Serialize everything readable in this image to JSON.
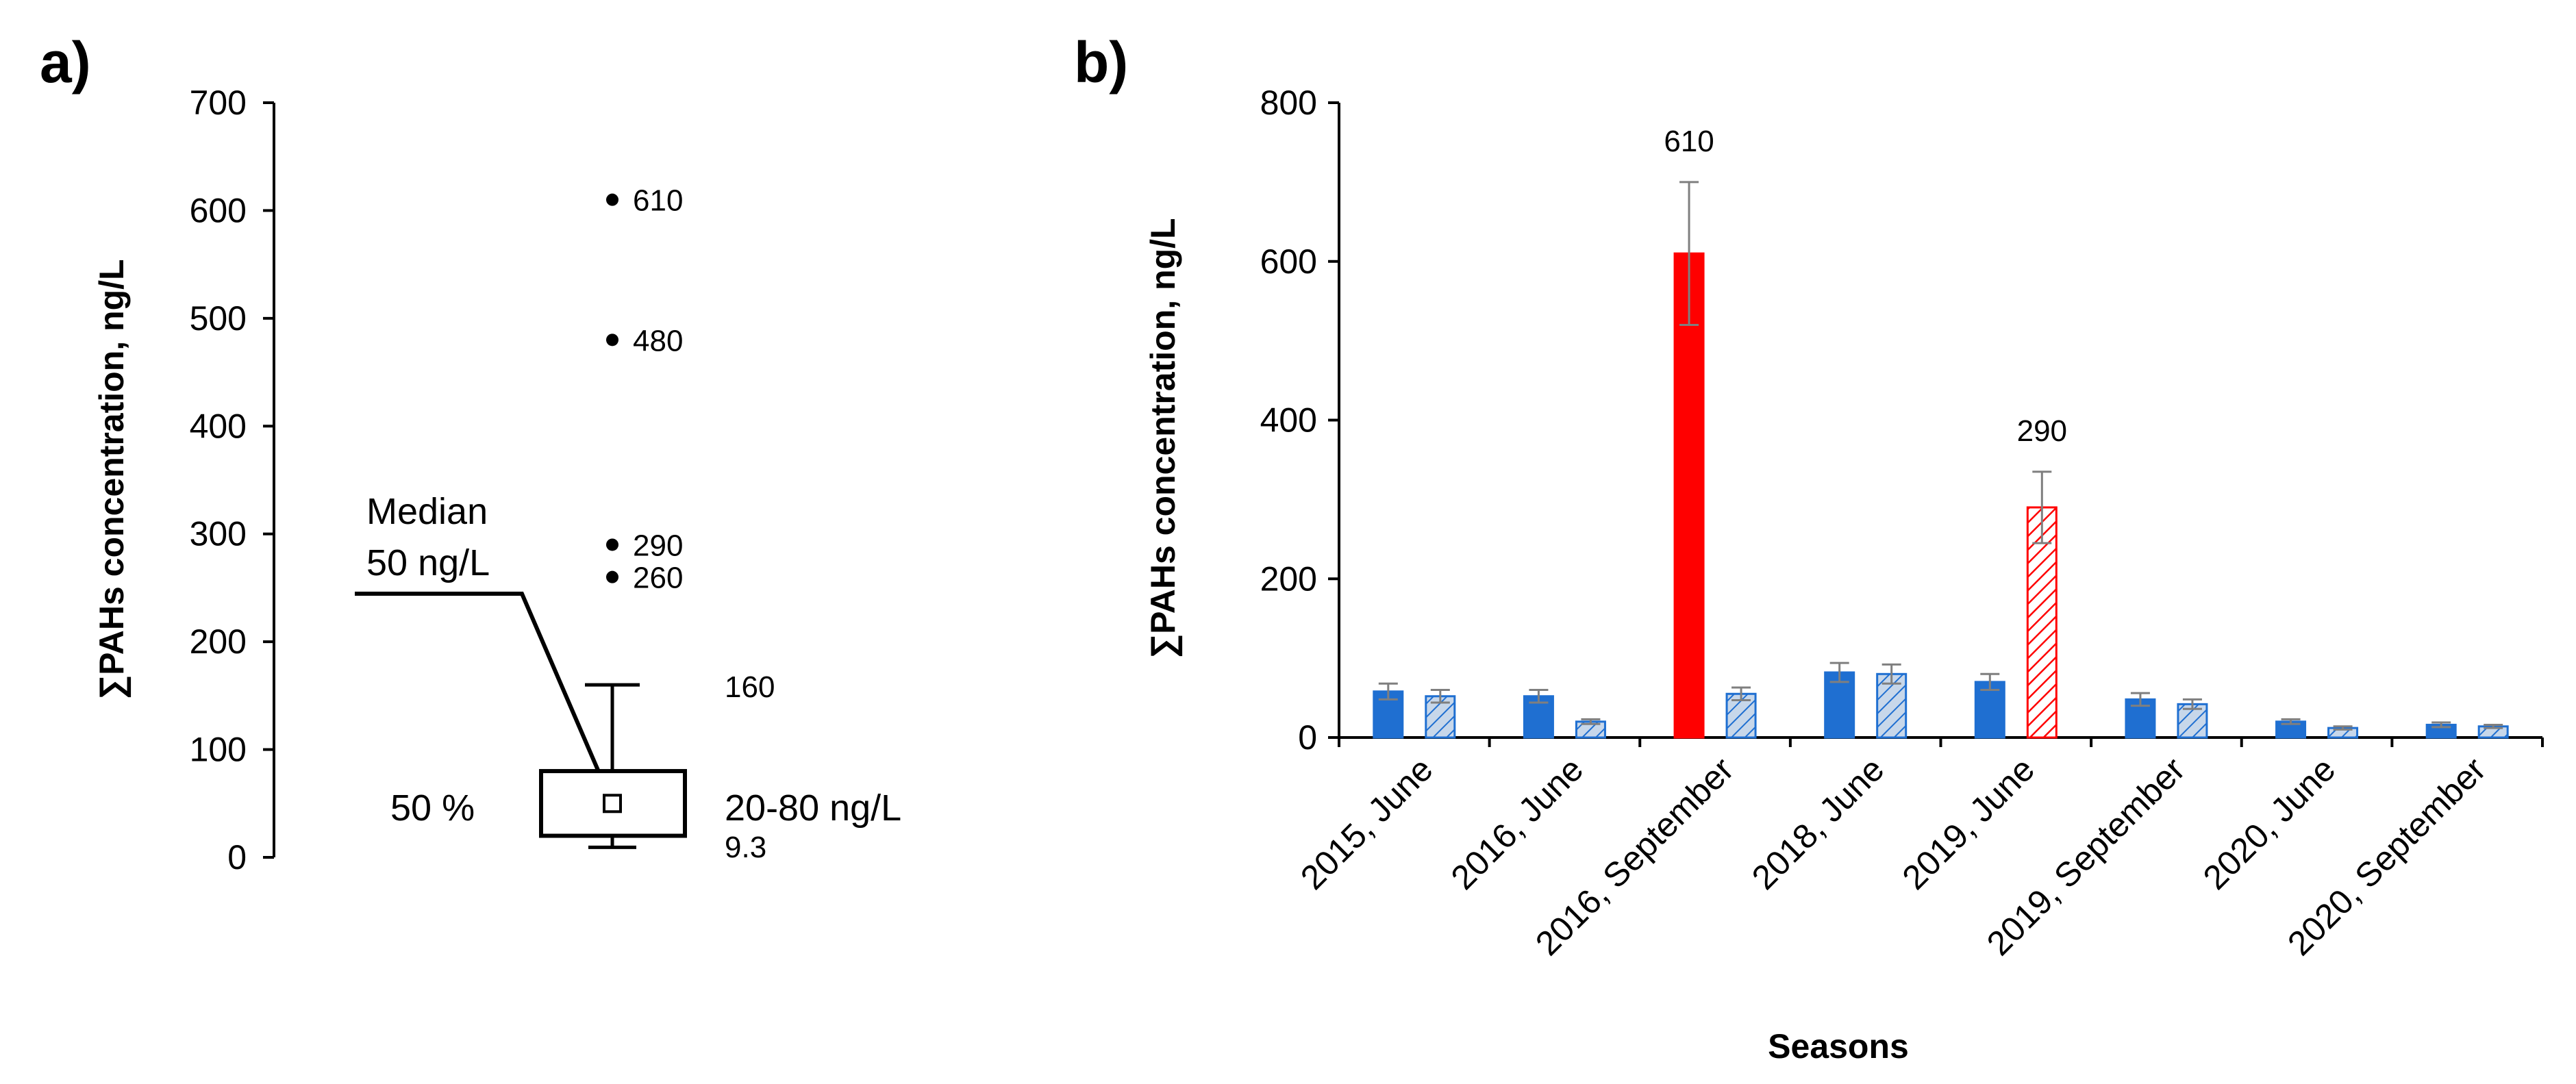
{
  "panels": {
    "a": "a)",
    "b": "b)"
  },
  "chart_data": [
    {
      "type": "box",
      "panel": "a)",
      "ylabel": "∑PAHs concentration, ng/L",
      "ylim": [
        0,
        700
      ],
      "yticks": [
        0,
        100,
        200,
        300,
        400,
        500,
        600,
        700
      ],
      "box": {
        "min": 9.3,
        "q1": 20,
        "median": 50,
        "q3": 80,
        "whisker_high": 160
      },
      "outliers": [
        {
          "value": 610,
          "label": "610"
        },
        {
          "value": 480,
          "label": "480"
        },
        {
          "value": 290,
          "label": "290"
        },
        {
          "value": 260,
          "label": "260"
        }
      ],
      "annotations": {
        "median_line1": "Median",
        "median_line2": "50 ng/L",
        "percent": "50 %",
        "range": "20-80 ng/L",
        "whisker_high": "160",
        "minimum": "9.3"
      }
    },
    {
      "type": "bar",
      "panel": "b)",
      "ylabel": "∑PAHs concentration, ng/L",
      "xlabel": "Seasons",
      "ylim": [
        0,
        800
      ],
      "yticks": [
        0,
        200,
        400,
        600,
        800
      ],
      "categories": [
        "2015, June",
        "2016, June",
        "2016, September",
        "2018, June",
        "2019, June",
        "2019, September",
        "2020, June",
        "2020, September"
      ],
      "series": [
        {
          "name": "solid",
          "values": [
            58,
            52,
            610,
            82,
            70,
            48,
            20,
            16
          ],
          "errors": [
            10,
            8,
            90,
            12,
            10,
            8,
            3,
            3
          ],
          "colors": [
            "#1f6fd1",
            "#1f6fd1",
            "#ff0000",
            "#1f6fd1",
            "#1f6fd1",
            "#1f6fd1",
            "#1f6fd1",
            "#1f6fd1"
          ]
        },
        {
          "name": "hatched",
          "values": [
            52,
            20,
            55,
            80,
            290,
            42,
            12,
            14
          ],
          "errors": [
            8,
            3,
            8,
            12,
            45,
            6,
            2,
            2
          ],
          "colors": [
            "#1f6fd1",
            "#1f6fd1",
            "#1f6fd1",
            "#1f6fd1",
            "#ff0000",
            "#1f6fd1",
            "#1f6fd1",
            "#1f6fd1"
          ]
        }
      ],
      "value_labels": [
        {
          "category": "2016, September",
          "series": "solid",
          "text": "610"
        },
        {
          "category": "2019, June",
          "series": "hatched",
          "text": "290"
        }
      ],
      "colors": {
        "blue": "#1f6fd1",
        "red": "#ff0000",
        "hatch_blue": "#c7d7ea",
        "hatch_red": "#ffffff",
        "error": "#7f7f7f"
      }
    }
  ]
}
